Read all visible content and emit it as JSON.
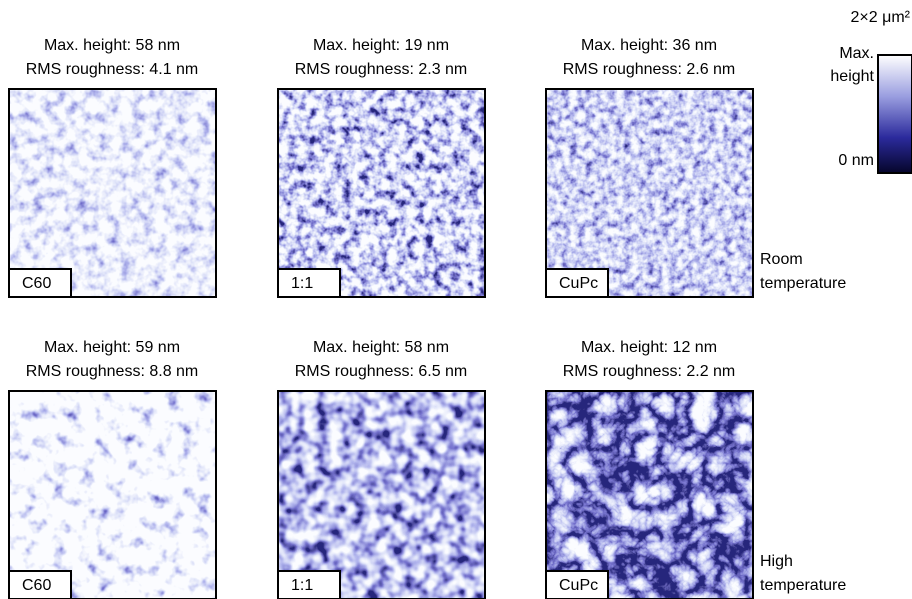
{
  "scale": {
    "scan_size": "2×2 μm²",
    "max_label": "Max. height",
    "min_label": "0 nm"
  },
  "rows": [
    {
      "condition": "Room temperature",
      "panels": [
        {
          "sample": "C60",
          "max_height": "Max. height: 58 nm",
          "rms": "RMS roughness: 4.1 nm"
        },
        {
          "sample": "1:1",
          "max_height": "Max. height: 19 nm",
          "rms": "RMS roughness: 2.3 nm"
        },
        {
          "sample": "CuPc",
          "max_height": "Max. height: 36 nm",
          "rms": "RMS roughness: 2.6 nm"
        }
      ]
    },
    {
      "condition": "High temperature",
      "panels": [
        {
          "sample": "C60",
          "max_height": "Max. height: 59 nm",
          "rms": "RMS roughness: 8.8 nm"
        },
        {
          "sample": "1:1",
          "max_height": "Max. height: 58 nm",
          "rms": "RMS roughness: 6.5 nm"
        },
        {
          "sample": "CuPc",
          "max_height": "Max. height: 12 nm",
          "rms": "RMS roughness: 2.2 nm"
        }
      ]
    }
  ]
}
